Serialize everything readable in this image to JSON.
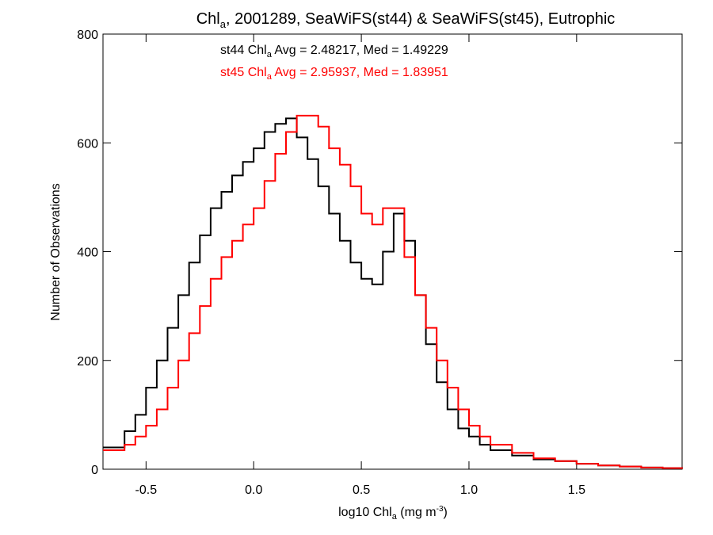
{
  "chart_data": {
    "type": "line",
    "title": {
      "prefix": "Chl",
      "sub": "a",
      "suffix": ", 2001289, SeaWiFS(st44) & SeaWiFS(st45), Eutrophic"
    },
    "xlabel": {
      "prefix": "log10 Chl",
      "sub": "a",
      "mid": " (mg m",
      "sup": "-3",
      "suffix": ")"
    },
    "ylabel": "Number of Observations",
    "xlim": [
      -0.7,
      1.99
    ],
    "ylim": [
      0,
      800
    ],
    "x_ticks": [
      {
        "value": -0.5,
        "label": "-0.5"
      },
      {
        "value": 0.0,
        "label": "0.0"
      },
      {
        "value": 0.5,
        "label": "0.5"
      },
      {
        "value": 1.0,
        "label": "1.0"
      },
      {
        "value": 1.5,
        "label": "1.5"
      }
    ],
    "y_ticks": [
      {
        "value": 0,
        "label": "0"
      },
      {
        "value": 200,
        "label": "200"
      },
      {
        "value": 400,
        "label": "400"
      },
      {
        "value": 600,
        "label": "600"
      },
      {
        "value": 800,
        "label": "800"
      }
    ],
    "annotations": [
      {
        "prefix": "st44 Chl",
        "sub": "a",
        "suffix": " Avg = 2.48217, Med = 1.49229",
        "color": "#000000"
      },
      {
        "prefix": "st45 Chl",
        "sub": "a",
        "suffix": " Avg = 2.95937, Med = 1.83951",
        "color": "#ff0000"
      }
    ],
    "series": [
      {
        "color": "#000000",
        "x": [
          -0.7,
          -0.6,
          -0.55,
          -0.5,
          -0.45,
          -0.4,
          -0.35,
          -0.3,
          -0.25,
          -0.2,
          -0.15,
          -0.1,
          -0.05,
          0.0,
          0.05,
          0.1,
          0.15,
          0.2,
          0.25,
          0.3,
          0.35,
          0.4,
          0.45,
          0.5,
          0.55,
          0.6,
          0.65,
          0.7,
          0.75,
          0.8,
          0.85,
          0.9,
          0.95,
          1.0,
          1.05,
          1.1,
          1.2,
          1.3,
          1.4,
          1.5,
          1.6,
          1.7,
          1.8,
          1.9,
          1.99
        ],
        "y": [
          40,
          70,
          100,
          150,
          200,
          260,
          320,
          380,
          430,
          480,
          510,
          540,
          565,
          590,
          620,
          635,
          645,
          610,
          570,
          520,
          470,
          420,
          380,
          350,
          340,
          400,
          470,
          420,
          320,
          230,
          160,
          110,
          75,
          60,
          45,
          35,
          25,
          18,
          15,
          10,
          7,
          5,
          3,
          2,
          1
        ]
      },
      {
        "color": "#ff0000",
        "x": [
          -0.7,
          -0.6,
          -0.55,
          -0.5,
          -0.45,
          -0.4,
          -0.35,
          -0.3,
          -0.25,
          -0.2,
          -0.15,
          -0.1,
          -0.05,
          0.0,
          0.05,
          0.1,
          0.15,
          0.2,
          0.25,
          0.3,
          0.35,
          0.4,
          0.45,
          0.5,
          0.55,
          0.6,
          0.65,
          0.7,
          0.75,
          0.8,
          0.85,
          0.9,
          0.95,
          1.0,
          1.05,
          1.1,
          1.2,
          1.3,
          1.4,
          1.5,
          1.6,
          1.7,
          1.8,
          1.9,
          1.99
        ],
        "y": [
          35,
          45,
          60,
          80,
          110,
          150,
          200,
          250,
          300,
          350,
          390,
          420,
          450,
          480,
          530,
          580,
          620,
          650,
          650,
          630,
          590,
          560,
          520,
          470,
          450,
          480,
          480,
          390,
          320,
          260,
          200,
          150,
          110,
          80,
          60,
          45,
          30,
          20,
          15,
          10,
          7,
          5,
          3,
          2,
          1
        ]
      }
    ]
  }
}
